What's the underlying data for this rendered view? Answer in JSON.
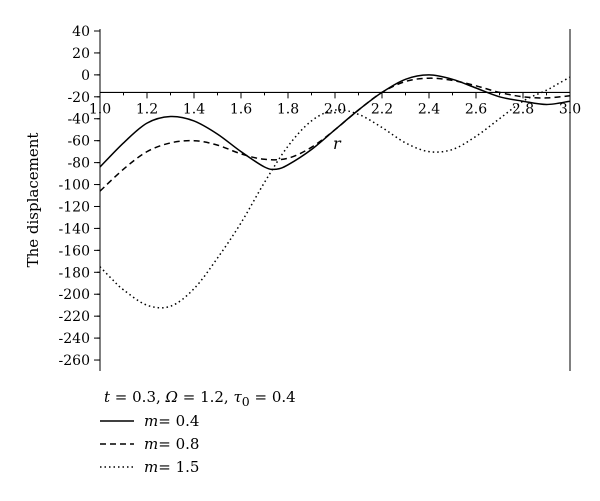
{
  "chart_data": {
    "type": "line",
    "ylabel": "The displacement",
    "xaxis_label": "r",
    "xlim": [
      1.0,
      3.0
    ],
    "ylim": [
      -270,
      40
    ],
    "x_axis_position_y": -16,
    "x_ticks": [
      "1.0",
      "1.2",
      "1.4",
      "1.6",
      "1.8",
      "2.0",
      "2.2",
      "2.4",
      "2.6",
      "2.8",
      "3.0"
    ],
    "y_ticks": [
      40,
      20,
      0,
      -20,
      -40,
      -60,
      -80,
      -100,
      -120,
      -140,
      -160,
      -180,
      -200,
      -220,
      -240,
      -260
    ],
    "params_text": {
      "t_sym": "t",
      "t_val": " = 0.3, ",
      "omega_sym": "Ω",
      "omega_val": " = 1.2, ",
      "tau_sym": "τ",
      "tau_sub": "0",
      "tau_val": " = 0.4"
    },
    "series": [
      {
        "name": "m = 0.4",
        "m_sym": "m",
        "m_val": " = 0.4",
        "dash": "none",
        "x": [
          1.0,
          1.1,
          1.2,
          1.3,
          1.4,
          1.5,
          1.6,
          1.7,
          1.75,
          1.8,
          1.9,
          2.0,
          2.1,
          2.2,
          2.3,
          2.4,
          2.5,
          2.6,
          2.7,
          2.8,
          2.9,
          3.0
        ],
        "y": [
          -84,
          -62,
          -44,
          -38,
          -42,
          -54,
          -70,
          -84,
          -86,
          -82,
          -68,
          -50,
          -32,
          -16,
          -4,
          0,
          -4,
          -12,
          -20,
          -24,
          -27,
          -24
        ]
      },
      {
        "name": "m = 0.8",
        "m_sym": "m",
        "m_val": " = 0.8",
        "dash": "6,4",
        "x": [
          1.0,
          1.1,
          1.2,
          1.3,
          1.4,
          1.5,
          1.6,
          1.7,
          1.8,
          1.9,
          2.0,
          2.1,
          2.2,
          2.3,
          2.4,
          2.5,
          2.6,
          2.7,
          2.8,
          2.9,
          3.0
        ],
        "y": [
          -106,
          -86,
          -70,
          -62,
          -60,
          -64,
          -72,
          -77,
          -76,
          -66,
          -50,
          -32,
          -16,
          -6,
          -3,
          -5,
          -10,
          -16,
          -20,
          -21,
          -19
        ]
      },
      {
        "name": "m = 1.5",
        "m_sym": "m",
        "m_val": " = 1.5",
        "dash": "1.5,3",
        "x": [
          1.0,
          1.05,
          1.1,
          1.2,
          1.3,
          1.4,
          1.5,
          1.6,
          1.7,
          1.8,
          1.9,
          2.0,
          2.1,
          2.2,
          2.3,
          2.4,
          2.5,
          2.6,
          2.7,
          2.8,
          2.9,
          2.95,
          3.0
        ],
        "y": [
          -175,
          -186,
          -196,
          -210,
          -211,
          -195,
          -167,
          -135,
          -98,
          -65,
          -42,
          -32,
          -36,
          -48,
          -62,
          -70,
          -68,
          -56,
          -40,
          -24,
          -14,
          -8,
          -2
        ]
      }
    ]
  }
}
